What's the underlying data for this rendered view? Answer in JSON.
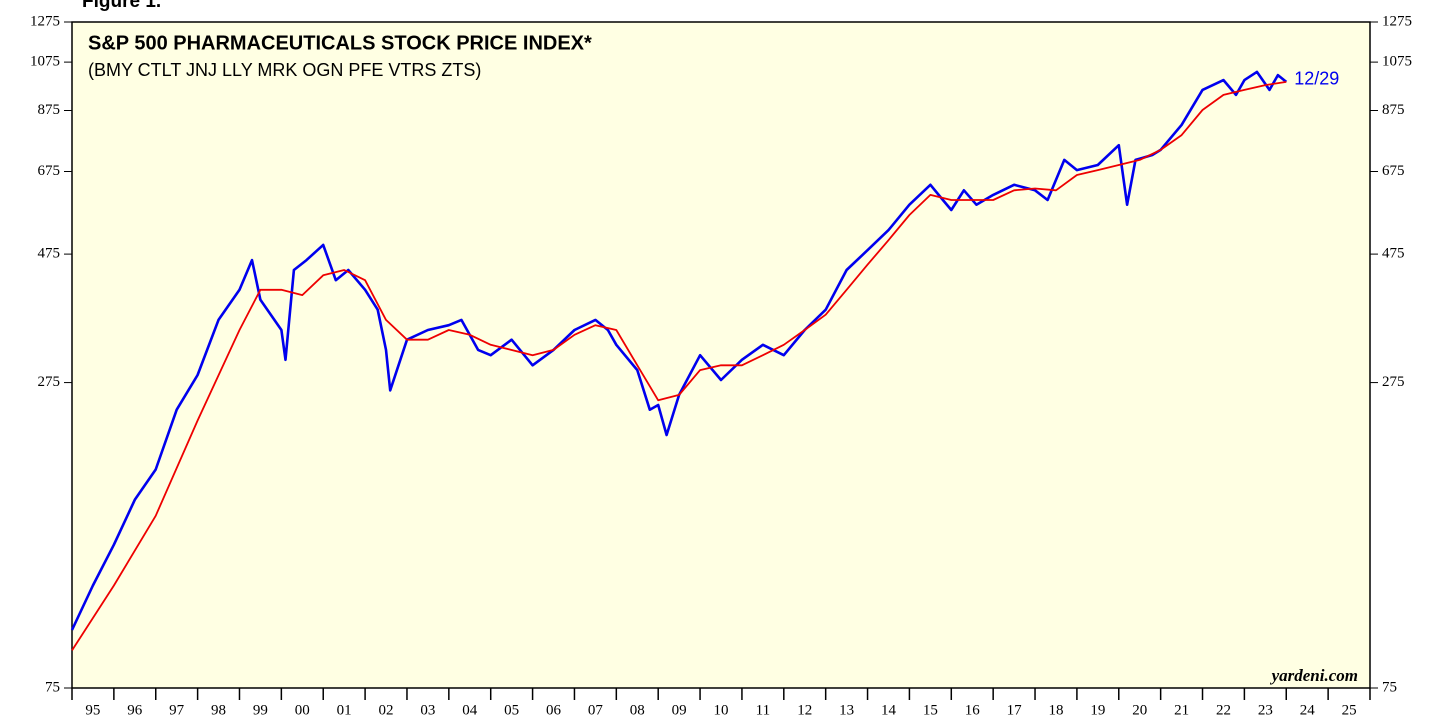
{
  "chart_data": {
    "type": "line",
    "figure_label": "Figure 1.",
    "title": "S&P 500 PHARMACEUTICALS STOCK PRICE INDEX*",
    "subtitle": "(BMY CTLT JNJ LLY MRK OGN PFE VTRS ZTS)",
    "source": "yardeni.com",
    "annotation": "12/29",
    "log_scale": true,
    "background": "#ffffe3",
    "ylim": [
      75,
      1275
    ],
    "yticks": [
      75,
      275,
      475,
      675,
      875,
      1075,
      1275
    ],
    "xlim": [
      1995,
      2026
    ],
    "xticks": [
      1995,
      1996,
      1997,
      1998,
      1999,
      2000,
      2001,
      2002,
      2003,
      2004,
      2005,
      2006,
      2007,
      2008,
      2009,
      2010,
      2011,
      2012,
      2013,
      2014,
      2015,
      2016,
      2017,
      2018,
      2019,
      2020,
      2021,
      2022,
      2023,
      2024,
      2025,
      2026
    ],
    "categories": [
      "95",
      "96",
      "97",
      "98",
      "99",
      "00",
      "01",
      "02",
      "03",
      "04",
      "05",
      "06",
      "07",
      "08",
      "09",
      "10",
      "11",
      "12",
      "13",
      "14",
      "15",
      "16",
      "17",
      "18",
      "19",
      "20",
      "21",
      "22",
      "23",
      "24",
      "25"
    ],
    "series": [
      {
        "color": "#0000ee",
        "x": [
          1995.0,
          1995.5,
          1996.0,
          1996.5,
          1997.0,
          1997.5,
          1998.0,
          1998.5,
          1999.0,
          1999.3,
          1999.5,
          2000.0,
          2000.1,
          2000.3,
          2000.6,
          2001.0,
          2001.3,
          2001.6,
          2002.0,
          2002.3,
          2002.5,
          2002.6,
          2003.0,
          2003.5,
          2004.0,
          2004.3,
          2004.7,
          2005.0,
          2005.5,
          2006.0,
          2006.5,
          2007.0,
          2007.5,
          2007.8,
          2008.0,
          2008.5,
          2008.8,
          2009.0,
          2009.2,
          2009.5,
          2010.0,
          2010.5,
          2011.0,
          2011.5,
          2012.0,
          2012.5,
          2013.0,
          2013.5,
          2014.0,
          2014.5,
          2015.0,
          2015.5,
          2015.8,
          2016.0,
          2016.3,
          2016.6,
          2017.0,
          2017.5,
          2018.0,
          2018.3,
          2018.7,
          2019.0,
          2019.5,
          2020.0,
          2020.2,
          2020.4,
          2020.8,
          2021.0,
          2021.5,
          2022.0,
          2022.5,
          2022.8,
          2023.0,
          2023.3,
          2023.6,
          2023.8,
          2024.0
        ],
        "values": [
          96,
          116,
          138,
          167,
          190,
          245,
          284,
          359,
          408,
          463,
          391,
          344,
          303,
          444,
          463,
          494,
          425,
          444,
          408,
          375,
          316,
          266,
          330,
          344,
          351,
          359,
          316,
          309,
          330,
          296,
          316,
          344,
          359,
          344,
          323,
          290,
          245,
          250,
          220,
          261,
          309,
          278,
          303,
          323,
          309,
          344,
          375,
          444,
          483,
          526,
          586,
          638,
          598,
          573,
          623,
          586,
          611,
          638,
          623,
          598,
          709,
          679,
          694,
          755,
          586,
          709,
          724,
          740,
          823,
          955,
          996,
          935,
          996,
          1031,
          955,
          1017,
          988
        ]
      },
      {
        "color": "#ee0000",
        "x": [
          1995.0,
          1996.0,
          1997.0,
          1998.0,
          1999.0,
          1999.5,
          2000.0,
          2000.5,
          2001.0,
          2001.5,
          2002.0,
          2002.5,
          2003.0,
          2003.5,
          2004.0,
          2004.5,
          2005.0,
          2006.0,
          2006.5,
          2007.0,
          2007.5,
          2008.0,
          2008.5,
          2009.0,
          2009.5,
          2010.0,
          2010.5,
          2011.0,
          2011.5,
          2012.0,
          2012.5,
          2013.0,
          2013.5,
          2014.0,
          2014.5,
          2015.0,
          2015.5,
          2016.0,
          2016.5,
          2017.0,
          2017.5,
          2018.0,
          2018.5,
          2019.0,
          2019.5,
          2020.0,
          2020.5,
          2021.0,
          2021.5,
          2022.0,
          2022.5,
          2023.0,
          2023.5,
          2024.0
        ],
        "values": [
          88,
          116,
          156,
          234,
          344,
          408,
          408,
          399,
          434,
          444,
          425,
          359,
          330,
          330,
          344,
          337,
          323,
          309,
          316,
          337,
          351,
          344,
          296,
          255,
          261,
          290,
          296,
          296,
          309,
          323,
          344,
          367,
          408,
          454,
          504,
          561,
          611,
          598,
          598,
          598,
          623,
          628,
          623,
          665,
          679,
          694,
          709,
          740,
          788,
          877,
          935,
          955,
          975,
          988
        ]
      }
    ]
  }
}
